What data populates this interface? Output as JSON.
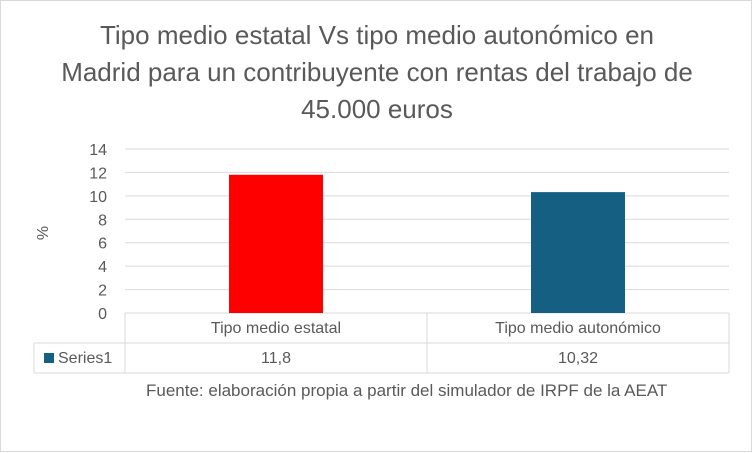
{
  "chart_data": {
    "type": "bar",
    "title": "Tipo medio estatal Vs tipo medio autonómico en Madrid para un contribuyente con rentas del trabajo de 45.000 euros",
    "ylabel": "%",
    "ylim": [
      0,
      14
    ],
    "yticks": [
      0,
      2,
      4,
      6,
      8,
      10,
      12,
      14
    ],
    "grid": true,
    "categories": [
      "Tipo medio estatal",
      "Tipo medio autonómico"
    ],
    "series": [
      {
        "name": "Series1",
        "values": [
          11.8,
          10.32
        ],
        "value_labels": [
          "11,8",
          "10,32"
        ]
      }
    ],
    "bar_colors": [
      "#ff0000",
      "#156082"
    ],
    "legend_key_color": "#156082",
    "data_table": true,
    "source": "Fuente: elaboración propia a partir del simulador de IRPF de la AEAT"
  }
}
